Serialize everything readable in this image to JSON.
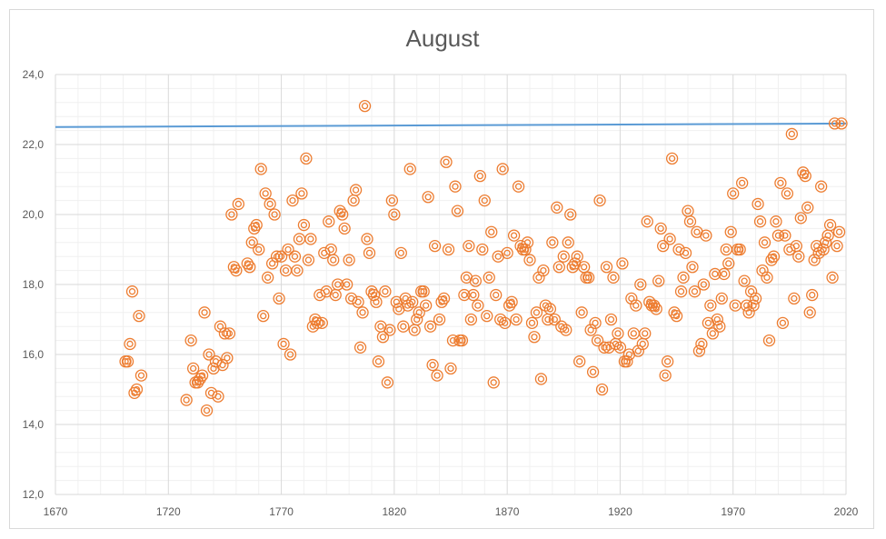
{
  "chart_data": {
    "type": "scatter",
    "title": "August",
    "xlabel": "",
    "ylabel": "",
    "xlim": [
      1670,
      2020
    ],
    "ylim": [
      12.0,
      24.0
    ],
    "x_ticks": [
      1670,
      1720,
      1770,
      1820,
      1870,
      1920,
      1970,
      2020
    ],
    "y_ticks": [
      12.0,
      14.0,
      16.0,
      18.0,
      20.0,
      22.0,
      24.0
    ],
    "x_tick_labels": [
      "1670",
      "1720",
      "1770",
      "1820",
      "1870",
      "1920",
      "1970",
      "2020"
    ],
    "y_tick_labels": [
      "12,0",
      "14,0",
      "16,0",
      "18,0",
      "20,0",
      "22,0",
      "24,0"
    ],
    "grid": true,
    "legend": "none",
    "marker_color": "#ED7D31",
    "trend_color": "#5B9BD5",
    "trendline": {
      "x": [
        1670,
        2020
      ],
      "y": [
        22.5,
        22.6
      ]
    },
    "points": [
      [
        1701,
        15.8
      ],
      [
        1702,
        15.8
      ],
      [
        1703,
        16.3
      ],
      [
        1704,
        17.8
      ],
      [
        1705,
        14.9
      ],
      [
        1706,
        15.0
      ],
      [
        1707,
        17.1
      ],
      [
        1708,
        15.4
      ],
      [
        1728,
        14.7
      ],
      [
        1730,
        16.4
      ],
      [
        1731,
        15.6
      ],
      [
        1732,
        15.2
      ],
      [
        1733,
        15.2
      ],
      [
        1734,
        15.3
      ],
      [
        1735,
        15.4
      ],
      [
        1736,
        17.2
      ],
      [
        1737,
        14.4
      ],
      [
        1738,
        16.0
      ],
      [
        1739,
        14.9
      ],
      [
        1740,
        15.6
      ],
      [
        1741,
        15.8
      ],
      [
        1742,
        14.8
      ],
      [
        1743,
        16.8
      ],
      [
        1744,
        15.7
      ],
      [
        1745,
        16.6
      ],
      [
        1746,
        15.9
      ],
      [
        1747,
        16.6
      ],
      [
        1748,
        20.0
      ],
      [
        1749,
        18.5
      ],
      [
        1750,
        18.4
      ],
      [
        1751,
        20.3
      ],
      [
        1755,
        18.6
      ],
      [
        1756,
        18.5
      ],
      [
        1757,
        19.2
      ],
      [
        1758,
        19.6
      ],
      [
        1759,
        19.7
      ],
      [
        1760,
        19.0
      ],
      [
        1761,
        21.3
      ],
      [
        1762,
        17.1
      ],
      [
        1763,
        20.6
      ],
      [
        1764,
        18.2
      ],
      [
        1765,
        20.3
      ],
      [
        1766,
        18.6
      ],
      [
        1767,
        20.0
      ],
      [
        1768,
        18.8
      ],
      [
        1769,
        17.6
      ],
      [
        1770,
        18.8
      ],
      [
        1771,
        16.3
      ],
      [
        1772,
        18.4
      ],
      [
        1773,
        19.0
      ],
      [
        1774,
        16.0
      ],
      [
        1775,
        20.4
      ],
      [
        1776,
        18.8
      ],
      [
        1777,
        18.4
      ],
      [
        1778,
        19.3
      ],
      [
        1779,
        20.6
      ],
      [
        1780,
        19.7
      ],
      [
        1781,
        21.6
      ],
      [
        1782,
        18.7
      ],
      [
        1783,
        19.3
      ],
      [
        1784,
        16.8
      ],
      [
        1785,
        17.0
      ],
      [
        1786,
        16.9
      ],
      [
        1787,
        17.7
      ],
      [
        1788,
        16.9
      ],
      [
        1789,
        18.9
      ],
      [
        1790,
        17.8
      ],
      [
        1791,
        19.8
      ],
      [
        1792,
        19.0
      ],
      [
        1793,
        18.7
      ],
      [
        1794,
        17.7
      ],
      [
        1795,
        18.0
      ],
      [
        1796,
        20.1
      ],
      [
        1797,
        20.0
      ],
      [
        1798,
        19.6
      ],
      [
        1799,
        18.0
      ],
      [
        1800,
        18.7
      ],
      [
        1801,
        17.6
      ],
      [
        1802,
        20.4
      ],
      [
        1803,
        20.7
      ],
      [
        1804,
        17.5
      ],
      [
        1805,
        16.2
      ],
      [
        1806,
        17.2
      ],
      [
        1807,
        23.1
      ],
      [
        1808,
        19.3
      ],
      [
        1809,
        18.9
      ],
      [
        1810,
        17.8
      ],
      [
        1811,
        17.7
      ],
      [
        1812,
        17.5
      ],
      [
        1813,
        15.8
      ],
      [
        1814,
        16.8
      ],
      [
        1815,
        16.5
      ],
      [
        1816,
        17.8
      ],
      [
        1817,
        15.2
      ],
      [
        1818,
        16.7
      ],
      [
        1819,
        20.4
      ],
      [
        1820,
        20.0
      ],
      [
        1821,
        17.5
      ],
      [
        1822,
        17.3
      ],
      [
        1823,
        18.9
      ],
      [
        1824,
        16.8
      ],
      [
        1825,
        17.6
      ],
      [
        1826,
        17.4
      ],
      [
        1827,
        21.3
      ],
      [
        1828,
        17.5
      ],
      [
        1829,
        16.7
      ],
      [
        1830,
        17.0
      ],
      [
        1831,
        17.2
      ],
      [
        1832,
        17.8
      ],
      [
        1833,
        17.8
      ],
      [
        1834,
        17.4
      ],
      [
        1835,
        20.5
      ],
      [
        1836,
        16.8
      ],
      [
        1837,
        15.7
      ],
      [
        1838,
        19.1
      ],
      [
        1839,
        15.4
      ],
      [
        1840,
        17.0
      ],
      [
        1841,
        17.5
      ],
      [
        1842,
        17.6
      ],
      [
        1843,
        21.5
      ],
      [
        1844,
        19.0
      ],
      [
        1845,
        15.6
      ],
      [
        1846,
        16.4
      ],
      [
        1847,
        20.8
      ],
      [
        1848,
        20.1
      ],
      [
        1849,
        16.4
      ],
      [
        1850,
        16.4
      ],
      [
        1851,
        17.7
      ],
      [
        1852,
        18.2
      ],
      [
        1853,
        19.1
      ],
      [
        1854,
        17.0
      ],
      [
        1855,
        17.7
      ],
      [
        1856,
        18.1
      ],
      [
        1857,
        17.4
      ],
      [
        1858,
        21.1
      ],
      [
        1859,
        19.0
      ],
      [
        1860,
        20.4
      ],
      [
        1861,
        17.1
      ],
      [
        1862,
        18.2
      ],
      [
        1863,
        19.5
      ],
      [
        1864,
        15.2
      ],
      [
        1865,
        17.7
      ],
      [
        1866,
        18.8
      ],
      [
        1867,
        17.0
      ],
      [
        1868,
        21.3
      ],
      [
        1869,
        16.9
      ],
      [
        1870,
        18.9
      ],
      [
        1871,
        17.4
      ],
      [
        1872,
        17.5
      ],
      [
        1873,
        19.4
      ],
      [
        1874,
        17.0
      ],
      [
        1875,
        20.8
      ],
      [
        1876,
        19.1
      ],
      [
        1877,
        19.0
      ],
      [
        1878,
        19.0
      ],
      [
        1879,
        19.2
      ],
      [
        1880,
        18.7
      ],
      [
        1881,
        16.9
      ],
      [
        1882,
        16.5
      ],
      [
        1883,
        17.2
      ],
      [
        1884,
        18.2
      ],
      [
        1885,
        15.3
      ],
      [
        1886,
        18.4
      ],
      [
        1887,
        17.4
      ],
      [
        1888,
        17.0
      ],
      [
        1889,
        17.3
      ],
      [
        1890,
        19.2
      ],
      [
        1891,
        17.0
      ],
      [
        1892,
        20.2
      ],
      [
        1893,
        18.5
      ],
      [
        1894,
        16.8
      ],
      [
        1895,
        18.8
      ],
      [
        1896,
        16.7
      ],
      [
        1897,
        19.2
      ],
      [
        1898,
        20.0
      ],
      [
        1899,
        18.5
      ],
      [
        1900,
        18.6
      ],
      [
        1901,
        18.8
      ],
      [
        1902,
        15.8
      ],
      [
        1903,
        17.2
      ],
      [
        1904,
        18.5
      ],
      [
        1905,
        18.2
      ],
      [
        1906,
        18.2
      ],
      [
        1907,
        16.7
      ],
      [
        1908,
        15.5
      ],
      [
        1909,
        16.9
      ],
      [
        1910,
        16.4
      ],
      [
        1911,
        20.4
      ],
      [
        1912,
        15.0
      ],
      [
        1913,
        16.2
      ],
      [
        1914,
        18.5
      ],
      [
        1915,
        16.2
      ],
      [
        1916,
        17.0
      ],
      [
        1917,
        18.2
      ],
      [
        1918,
        16.3
      ],
      [
        1919,
        16.6
      ],
      [
        1920,
        16.2
      ],
      [
        1921,
        18.6
      ],
      [
        1922,
        15.8
      ],
      [
        1923,
        15.8
      ],
      [
        1924,
        16.0
      ],
      [
        1925,
        17.6
      ],
      [
        1926,
        16.6
      ],
      [
        1927,
        17.4
      ],
      [
        1928,
        16.1
      ],
      [
        1929,
        18.0
      ],
      [
        1930,
        16.3
      ],
      [
        1931,
        16.6
      ],
      [
        1932,
        19.8
      ],
      [
        1933,
        17.5
      ],
      [
        1934,
        17.4
      ],
      [
        1935,
        17.4
      ],
      [
        1936,
        17.3
      ],
      [
        1937,
        18.1
      ],
      [
        1938,
        19.6
      ],
      [
        1939,
        19.1
      ],
      [
        1940,
        15.4
      ],
      [
        1941,
        15.8
      ],
      [
        1942,
        19.3
      ],
      [
        1943,
        21.6
      ],
      [
        1944,
        17.2
      ],
      [
        1945,
        17.1
      ],
      [
        1946,
        19.0
      ],
      [
        1947,
        17.8
      ],
      [
        1948,
        18.2
      ],
      [
        1949,
        18.9
      ],
      [
        1950,
        20.1
      ],
      [
        1951,
        19.8
      ],
      [
        1952,
        18.5
      ],
      [
        1953,
        17.8
      ],
      [
        1954,
        19.5
      ],
      [
        1955,
        16.1
      ],
      [
        1956,
        16.3
      ],
      [
        1957,
        18.0
      ],
      [
        1958,
        19.4
      ],
      [
        1959,
        16.9
      ],
      [
        1960,
        17.4
      ],
      [
        1961,
        16.6
      ],
      [
        1962,
        18.3
      ],
      [
        1963,
        17.0
      ],
      [
        1964,
        16.8
      ],
      [
        1965,
        17.6
      ],
      [
        1966,
        18.3
      ],
      [
        1967,
        19.0
      ],
      [
        1968,
        18.6
      ],
      [
        1969,
        19.5
      ],
      [
        1970,
        20.6
      ],
      [
        1971,
        17.4
      ],
      [
        1972,
        19.0
      ],
      [
        1973,
        19.0
      ],
      [
        1974,
        20.9
      ],
      [
        1975,
        18.1
      ],
      [
        1976,
        17.4
      ],
      [
        1977,
        17.2
      ],
      [
        1978,
        17.8
      ],
      [
        1979,
        17.4
      ],
      [
        1980,
        17.6
      ],
      [
        1981,
        20.3
      ],
      [
        1982,
        19.8
      ],
      [
        1983,
        18.4
      ],
      [
        1984,
        19.2
      ],
      [
        1985,
        18.2
      ],
      [
        1986,
        16.4
      ],
      [
        1987,
        18.7
      ],
      [
        1988,
        18.8
      ],
      [
        1989,
        19.8
      ],
      [
        1990,
        19.4
      ],
      [
        1991,
        20.9
      ],
      [
        1992,
        16.9
      ],
      [
        1993,
        19.4
      ],
      [
        1994,
        20.6
      ],
      [
        1995,
        19.0
      ],
      [
        1996,
        22.3
      ],
      [
        1997,
        17.6
      ],
      [
        1998,
        19.1
      ],
      [
        1999,
        18.8
      ],
      [
        2000,
        19.9
      ],
      [
        2001,
        21.2
      ],
      [
        2002,
        21.1
      ],
      [
        2003,
        20.2
      ],
      [
        2004,
        17.2
      ],
      [
        2005,
        17.7
      ],
      [
        2006,
        18.7
      ],
      [
        2007,
        19.1
      ],
      [
        2008,
        18.9
      ],
      [
        2009,
        20.8
      ],
      [
        2010,
        19.0
      ],
      [
        2011,
        19.2
      ],
      [
        2012,
        19.4
      ],
      [
        2013,
        19.7
      ],
      [
        2014,
        18.2
      ],
      [
        2015,
        22.6
      ],
      [
        2016,
        19.1
      ],
      [
        2017,
        19.5
      ],
      [
        2018,
        22.6
      ]
    ]
  }
}
